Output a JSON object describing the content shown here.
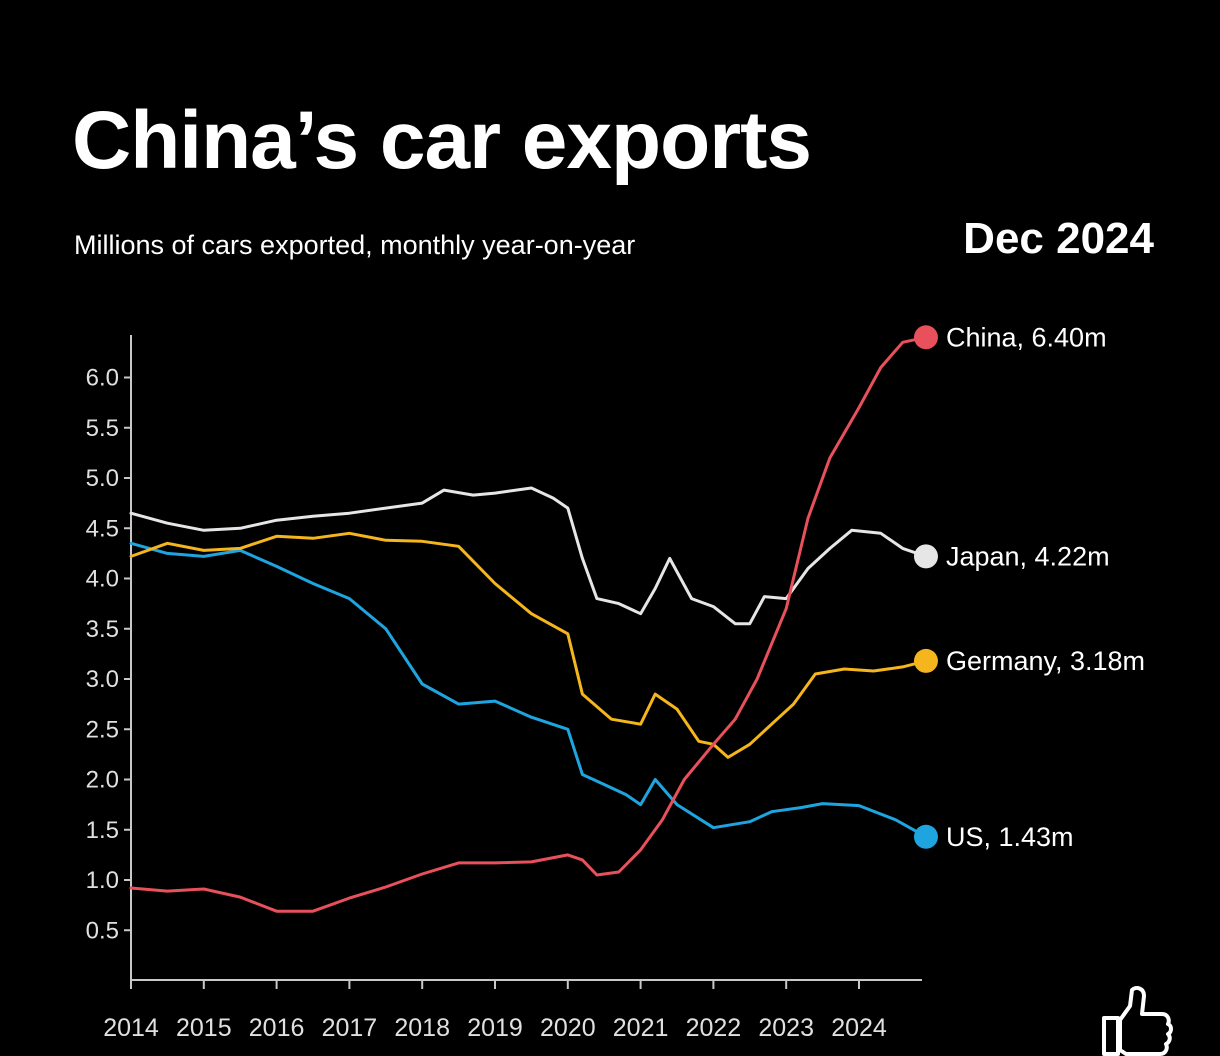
{
  "chart_data": {
    "type": "line",
    "title": "China’s car exports",
    "subtitle": "Millions of cars exported, monthly year-on-year",
    "date_label": "Dec 2024",
    "xlabel": "",
    "ylabel": "",
    "xlim": [
      2014,
      2024.92
    ],
    "ylim": [
      0,
      6.4
    ],
    "x_ticks": [
      "2014",
      "2015",
      "2016",
      "2017",
      "2018",
      "2019",
      "2020",
      "2021",
      "2022",
      "2023",
      "2024"
    ],
    "y_ticks": [
      "0.5",
      "1.0",
      "1.5",
      "2.0",
      "2.5",
      "3.0",
      "3.5",
      "4.0",
      "4.5",
      "5.0",
      "5.5",
      "6.0"
    ],
    "grid": false,
    "legend": "end-of-line labels",
    "series": [
      {
        "name": "China",
        "end_label": "China, 6.40m",
        "color": "#e8505b",
        "points": [
          [
            2014,
            0.92
          ],
          [
            2014.5,
            0.89
          ],
          [
            2015,
            0.91
          ],
          [
            2015.5,
            0.83
          ],
          [
            2016,
            0.69
          ],
          [
            2016.5,
            0.69
          ],
          [
            2017,
            0.82
          ],
          [
            2017.5,
            0.93
          ],
          [
            2018,
            1.06
          ],
          [
            2018.5,
            1.17
          ],
          [
            2019,
            1.17
          ],
          [
            2019.5,
            1.18
          ],
          [
            2020,
            1.25
          ],
          [
            2020.2,
            1.2
          ],
          [
            2020.4,
            1.05
          ],
          [
            2020.7,
            1.08
          ],
          [
            2021,
            1.3
          ],
          [
            2021.3,
            1.6
          ],
          [
            2021.6,
            2.0
          ],
          [
            2022,
            2.35
          ],
          [
            2022.3,
            2.6
          ],
          [
            2022.6,
            3.0
          ],
          [
            2023,
            3.7
          ],
          [
            2023.3,
            4.6
          ],
          [
            2023.6,
            5.2
          ],
          [
            2024,
            5.7
          ],
          [
            2024.3,
            6.1
          ],
          [
            2024.6,
            6.35
          ],
          [
            2024.92,
            6.4
          ]
        ]
      },
      {
        "name": "Japan",
        "end_label": "Japan, 4.22m",
        "color": "#e6e6e6",
        "points": [
          [
            2014,
            4.65
          ],
          [
            2014.5,
            4.55
          ],
          [
            2015,
            4.48
          ],
          [
            2015.5,
            4.5
          ],
          [
            2016,
            4.58
          ],
          [
            2016.5,
            4.62
          ],
          [
            2017,
            4.65
          ],
          [
            2017.5,
            4.7
          ],
          [
            2018,
            4.75
          ],
          [
            2018.3,
            4.88
          ],
          [
            2018.7,
            4.83
          ],
          [
            2019,
            4.85
          ],
          [
            2019.5,
            4.9
          ],
          [
            2019.8,
            4.8
          ],
          [
            2020,
            4.7
          ],
          [
            2020.2,
            4.2
          ],
          [
            2020.4,
            3.8
          ],
          [
            2020.7,
            3.75
          ],
          [
            2021,
            3.65
          ],
          [
            2021.2,
            3.9
          ],
          [
            2021.4,
            4.2
          ],
          [
            2021.7,
            3.8
          ],
          [
            2022,
            3.72
          ],
          [
            2022.3,
            3.55
          ],
          [
            2022.5,
            3.55
          ],
          [
            2022.7,
            3.82
          ],
          [
            2023,
            3.8
          ],
          [
            2023.3,
            4.1
          ],
          [
            2023.6,
            4.3
          ],
          [
            2023.9,
            4.48
          ],
          [
            2024.3,
            4.45
          ],
          [
            2024.6,
            4.3
          ],
          [
            2024.92,
            4.22
          ]
        ]
      },
      {
        "name": "Germany",
        "end_label": "Germany, 3.18m",
        "color": "#f5b51c",
        "points": [
          [
            2014,
            4.22
          ],
          [
            2014.5,
            4.35
          ],
          [
            2015,
            4.28
          ],
          [
            2015.5,
            4.3
          ],
          [
            2016,
            4.42
          ],
          [
            2016.5,
            4.4
          ],
          [
            2017,
            4.45
          ],
          [
            2017.5,
            4.38
          ],
          [
            2018,
            4.37
          ],
          [
            2018.5,
            4.32
          ],
          [
            2019,
            3.95
          ],
          [
            2019.5,
            3.65
          ],
          [
            2020,
            3.45
          ],
          [
            2020.2,
            2.85
          ],
          [
            2020.6,
            2.6
          ],
          [
            2021,
            2.55
          ],
          [
            2021.2,
            2.85
          ],
          [
            2021.5,
            2.7
          ],
          [
            2021.8,
            2.38
          ],
          [
            2022,
            2.35
          ],
          [
            2022.2,
            2.22
          ],
          [
            2022.5,
            2.35
          ],
          [
            2022.8,
            2.55
          ],
          [
            2023.1,
            2.75
          ],
          [
            2023.4,
            3.05
          ],
          [
            2023.8,
            3.1
          ],
          [
            2024.2,
            3.08
          ],
          [
            2024.6,
            3.12
          ],
          [
            2024.92,
            3.18
          ]
        ]
      },
      {
        "name": "US",
        "end_label": "US, 1.43m",
        "color": "#1ea5e0",
        "points": [
          [
            2014,
            4.35
          ],
          [
            2014.5,
            4.25
          ],
          [
            2015,
            4.22
          ],
          [
            2015.5,
            4.28
          ],
          [
            2016,
            4.12
          ],
          [
            2016.5,
            3.95
          ],
          [
            2017,
            3.8
          ],
          [
            2017.5,
            3.5
          ],
          [
            2018,
            2.95
          ],
          [
            2018.5,
            2.75
          ],
          [
            2019,
            2.78
          ],
          [
            2019.5,
            2.62
          ],
          [
            2020,
            2.5
          ],
          [
            2020.2,
            2.05
          ],
          [
            2020.5,
            1.95
          ],
          [
            2020.8,
            1.85
          ],
          [
            2021,
            1.75
          ],
          [
            2021.2,
            2.0
          ],
          [
            2021.5,
            1.75
          ],
          [
            2022,
            1.52
          ],
          [
            2022.5,
            1.58
          ],
          [
            2022.8,
            1.68
          ],
          [
            2023.2,
            1.72
          ],
          [
            2023.5,
            1.76
          ],
          [
            2024,
            1.74
          ],
          [
            2024.5,
            1.6
          ],
          [
            2024.92,
            1.43
          ]
        ]
      }
    ]
  }
}
